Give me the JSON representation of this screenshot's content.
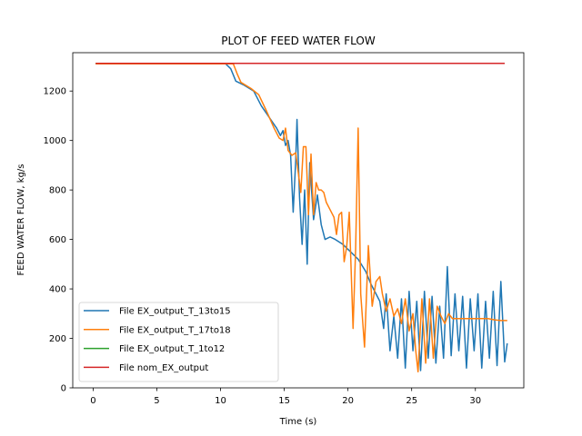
{
  "chart_data": {
    "type": "line",
    "title": "PLOT OF FEED WATER FLOW",
    "xlabel": "Time (s)",
    "ylabel": "FEED WATER FLOW, kg/s",
    "xlim": [
      -1.6,
      33.8
    ],
    "ylim": [
      0,
      1355
    ],
    "xticks": [
      0,
      5,
      10,
      15,
      20,
      25,
      30
    ],
    "yticks": [
      0,
      200,
      400,
      600,
      800,
      1000,
      1200
    ],
    "grid": false,
    "legend_position": "lower-left",
    "series": [
      {
        "name": "File EX_output_T_13to15",
        "color": "#1f77b4",
        "points": [
          [
            0.2,
            1310
          ],
          [
            10.4,
            1310
          ],
          [
            10.8,
            1290
          ],
          [
            11.2,
            1240
          ],
          [
            11.8,
            1225
          ],
          [
            12.6,
            1200
          ],
          [
            13.2,
            1140
          ],
          [
            13.6,
            1110
          ],
          [
            14.0,
            1080
          ],
          [
            14.4,
            1050
          ],
          [
            14.7,
            1020
          ],
          [
            14.9,
            1040
          ],
          [
            15.1,
            980
          ],
          [
            15.3,
            1000
          ],
          [
            15.5,
            940
          ],
          [
            15.7,
            710
          ],
          [
            15.9,
            920
          ],
          [
            16.0,
            1085
          ],
          [
            16.2,
            770
          ],
          [
            16.4,
            580
          ],
          [
            16.6,
            800
          ],
          [
            16.8,
            500
          ],
          [
            17.0,
            910
          ],
          [
            17.3,
            680
          ],
          [
            17.6,
            780
          ],
          [
            17.9,
            660
          ],
          [
            18.2,
            600
          ],
          [
            18.6,
            610
          ],
          [
            19.0,
            600
          ],
          [
            19.6,
            580
          ],
          [
            20.2,
            550
          ],
          [
            20.8,
            520
          ],
          [
            21.4,
            470
          ],
          [
            21.8,
            420
          ],
          [
            22.2,
            380
          ],
          [
            22.5,
            350
          ],
          [
            22.8,
            240
          ],
          [
            23.0,
            380
          ],
          [
            23.3,
            150
          ],
          [
            23.6,
            290
          ],
          [
            23.9,
            120
          ],
          [
            24.2,
            360
          ],
          [
            24.5,
            80
          ],
          [
            24.8,
            390
          ],
          [
            25.1,
            150
          ],
          [
            25.4,
            350
          ],
          [
            25.7,
            70
          ],
          [
            26.0,
            390
          ],
          [
            26.3,
            120
          ],
          [
            26.6,
            370
          ],
          [
            26.9,
            100
          ],
          [
            27.2,
            330
          ],
          [
            27.5,
            120
          ],
          [
            27.8,
            490
          ],
          [
            28.1,
            130
          ],
          [
            28.4,
            380
          ],
          [
            28.7,
            150
          ],
          [
            29.0,
            370
          ],
          [
            29.3,
            80
          ],
          [
            29.6,
            360
          ],
          [
            29.9,
            150
          ],
          [
            30.2,
            380
          ],
          [
            30.5,
            80
          ],
          [
            30.8,
            350
          ],
          [
            31.1,
            120
          ],
          [
            31.4,
            390
          ],
          [
            31.7,
            90
          ],
          [
            32.0,
            430
          ],
          [
            32.3,
            105
          ],
          [
            32.5,
            180
          ]
        ]
      },
      {
        "name": "File EX_output_T_17to18",
        "color": "#ff7f0e",
        "points": [
          [
            0.2,
            1310
          ],
          [
            11.0,
            1310
          ],
          [
            11.3,
            1270
          ],
          [
            11.6,
            1235
          ],
          [
            12.4,
            1210
          ],
          [
            13.0,
            1185
          ],
          [
            13.6,
            1120
          ],
          [
            14.2,
            1050
          ],
          [
            14.6,
            1010
          ],
          [
            14.9,
            1000
          ],
          [
            15.1,
            1050
          ],
          [
            15.3,
            960
          ],
          [
            15.6,
            940
          ],
          [
            15.9,
            950
          ],
          [
            16.1,
            870
          ],
          [
            16.3,
            790
          ],
          [
            16.5,
            975
          ],
          [
            16.7,
            975
          ],
          [
            16.9,
            700
          ],
          [
            17.1,
            945
          ],
          [
            17.3,
            700
          ],
          [
            17.5,
            830
          ],
          [
            17.7,
            800
          ],
          [
            17.9,
            800
          ],
          [
            18.1,
            790
          ],
          [
            18.3,
            750
          ],
          [
            18.6,
            720
          ],
          [
            18.9,
            690
          ],
          [
            19.1,
            620
          ],
          [
            19.3,
            700
          ],
          [
            19.5,
            710
          ],
          [
            19.7,
            510
          ],
          [
            19.9,
            570
          ],
          [
            20.1,
            710
          ],
          [
            20.4,
            240
          ],
          [
            20.6,
            560
          ],
          [
            20.8,
            1050
          ],
          [
            21.0,
            380
          ],
          [
            21.3,
            165
          ],
          [
            21.6,
            575
          ],
          [
            21.9,
            330
          ],
          [
            22.2,
            430
          ],
          [
            22.5,
            450
          ],
          [
            22.7,
            380
          ],
          [
            23.0,
            310
          ],
          [
            23.3,
            360
          ],
          [
            23.6,
            290
          ],
          [
            23.9,
            320
          ],
          [
            24.2,
            260
          ],
          [
            24.5,
            360
          ],
          [
            24.8,
            230
          ],
          [
            25.1,
            300
          ],
          [
            25.3,
            160
          ],
          [
            25.5,
            65
          ],
          [
            25.8,
            360
          ],
          [
            26.1,
            100
          ],
          [
            26.4,
            360
          ],
          [
            26.7,
            120
          ],
          [
            27.0,
            330
          ],
          [
            27.3,
            290
          ],
          [
            27.6,
            260
          ],
          [
            27.9,
            300
          ],
          [
            28.2,
            280
          ],
          [
            28.5,
            280
          ],
          [
            29.0,
            280
          ],
          [
            29.5,
            280
          ],
          [
            30.0,
            280
          ],
          [
            30.5,
            280
          ],
          [
            31.0,
            280
          ],
          [
            31.5,
            275
          ],
          [
            32.0,
            272
          ],
          [
            32.5,
            272
          ]
        ]
      },
      {
        "name": "File EX_output_T_1to12",
        "color": "#2ca02c",
        "points": [
          [
            0.2,
            1312
          ],
          [
            32.3,
            1312
          ]
        ]
      },
      {
        "name": "File nom_EX_output",
        "color": "#d62728",
        "points": [
          [
            0.2,
            1312
          ],
          [
            32.3,
            1312
          ]
        ]
      }
    ]
  }
}
